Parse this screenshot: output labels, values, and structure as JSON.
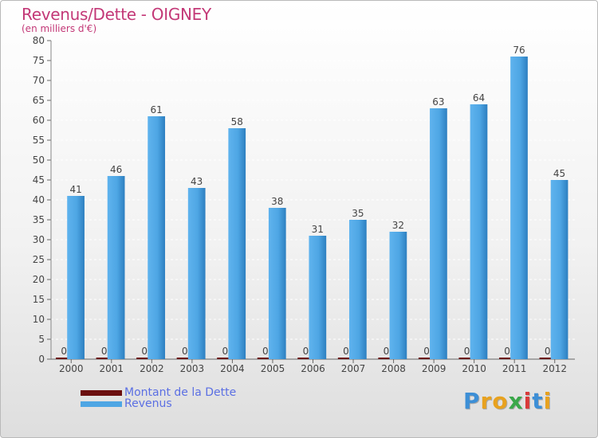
{
  "header": {
    "title": "Revenus/Dette - OIGNEY",
    "subtitle": "(en milliers d'€)"
  },
  "chart_data": {
    "type": "bar",
    "title": "Revenus/Dette - OIGNEY",
    "subtitle": "(en milliers d'€)",
    "xlabel": "",
    "ylabel": "",
    "ylim": [
      0,
      80
    ],
    "yticks": [
      0,
      5,
      10,
      15,
      20,
      25,
      30,
      35,
      40,
      45,
      50,
      55,
      60,
      65,
      70,
      75,
      80
    ],
    "grid": true,
    "categories": [
      "2000",
      "2001",
      "2002",
      "2003",
      "2004",
      "2005",
      "2006",
      "2007",
      "2008",
      "2009",
      "2010",
      "2011",
      "2012"
    ],
    "series": [
      {
        "name": "Montant de la Dette",
        "color": "#6b0f0f",
        "values": [
          0,
          0,
          0,
          0,
          0,
          0,
          0,
          0,
          0,
          0,
          0,
          0,
          0
        ]
      },
      {
        "name": "Revenus",
        "color": "#4ea6e4",
        "values": [
          41,
          46,
          61,
          43,
          58,
          38,
          31,
          35,
          32,
          63,
          64,
          76,
          45
        ]
      }
    ],
    "legend": "bottom-left"
  },
  "legend": {
    "items": [
      {
        "label": "Montant de la Dette",
        "color": "#6b0f0f"
      },
      {
        "label": "Revenus",
        "color": "#4ea6e4"
      }
    ]
  },
  "logo": {
    "letters": [
      "P",
      "r",
      "o",
      "x",
      "i",
      "t",
      "i"
    ],
    "colors": [
      "#3d8fd6",
      "#e8a21f",
      "#e8a21f",
      "#3aa84a",
      "#d93a3a",
      "#3d8fd6",
      "#e8a21f"
    ]
  }
}
